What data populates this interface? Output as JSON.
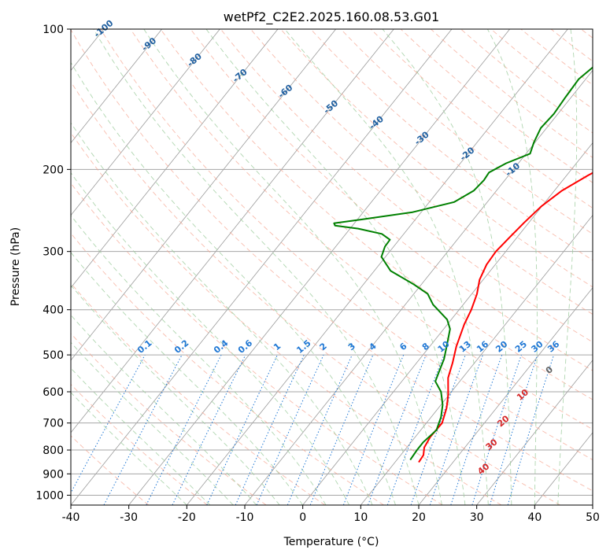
{
  "chart_data": {
    "type": "line",
    "title": "wetPf2_C2E2.2025.160.08.53.G01",
    "xlabel": "Temperature (°C)",
    "ylabel": "Pressure (hPa)",
    "xlim": [
      -40,
      50
    ],
    "ylim": [
      1050,
      100
    ],
    "y_scale": "log",
    "x_ticks": [
      -40,
      -30,
      -20,
      -10,
      0,
      10,
      20,
      30,
      40,
      50
    ],
    "y_ticks": [
      100,
      200,
      300,
      400,
      500,
      600,
      700,
      800,
      900,
      1000
    ],
    "grid": true,
    "series": [
      {
        "role": "temperature",
        "color": "#ff0000",
        "points": [
          [
            14.1,
            850
          ],
          [
            13.9,
            820
          ],
          [
            13.0,
            790
          ],
          [
            12.6,
            750
          ],
          [
            12.7,
            700
          ],
          [
            11.4,
            650
          ],
          [
            9.9,
            610
          ],
          [
            7.5,
            560
          ],
          [
            6.2,
            520
          ],
          [
            4.6,
            480
          ],
          [
            2.9,
            430
          ],
          [
            2.1,
            400
          ],
          [
            0.9,
            370
          ],
          [
            -0.6,
            345
          ],
          [
            -1.5,
            320
          ],
          [
            -1.7,
            300
          ],
          [
            -1.3,
            280
          ],
          [
            -0.8,
            260
          ],
          [
            -0.1,
            240
          ],
          [
            1.3,
            222
          ],
          [
            3.7,
            206
          ],
          [
            5.7,
            195
          ],
          [
            6.9,
            185
          ],
          [
            8.3,
            172
          ],
          [
            10.4,
            160
          ],
          [
            13.6,
            148
          ],
          [
            16.3,
            139
          ],
          [
            18.6,
            131
          ],
          [
            19.9,
            124
          ],
          [
            20.9,
            117
          ],
          [
            21.3,
            110
          ],
          [
            21.5,
            104
          ],
          [
            21.9,
            100
          ]
        ]
      },
      {
        "role": "dewpoint",
        "color": "#008000",
        "points": [
          [
            12.3,
            840
          ],
          [
            12.1,
            800
          ],
          [
            12.1,
            770
          ],
          [
            12.7,
            725
          ],
          [
            11.7,
            680
          ],
          [
            10.3,
            640
          ],
          [
            8.2,
            600
          ],
          [
            5.8,
            570
          ],
          [
            5.0,
            540
          ],
          [
            4.2,
            510
          ],
          [
            2.5,
            470
          ],
          [
            1.1,
            440
          ],
          [
            -0.7,
            420
          ],
          [
            -5.2,
            390
          ],
          [
            -7.6,
            370
          ],
          [
            -11.3,
            353
          ],
          [
            -17.2,
            330
          ],
          [
            -20.7,
            308
          ],
          [
            -21.5,
            293
          ],
          [
            -21.6,
            283
          ],
          [
            -23.8,
            275
          ],
          [
            -28.6,
            268
          ],
          [
            -33.0,
            264
          ],
          [
            -33.5,
            261
          ],
          [
            -29.2,
            256
          ],
          [
            -21.5,
            247
          ],
          [
            -15.7,
            235
          ],
          [
            -13.9,
            222
          ],
          [
            -13.6,
            211
          ],
          [
            -13.8,
            203
          ],
          [
            -12.1,
            194
          ],
          [
            -9.3,
            185
          ],
          [
            -10.2,
            175
          ],
          [
            -11.0,
            163
          ],
          [
            -10.7,
            152
          ],
          [
            -11.0,
            140
          ],
          [
            -11.2,
            128
          ],
          [
            -10.1,
            118
          ],
          [
            -7.8,
            109
          ],
          [
            -4.8,
            100
          ]
        ]
      }
    ],
    "dry_adiabat_labels": [
      "-100",
      "-90",
      "-80",
      "-70",
      "-60",
      "-50",
      "-40",
      "-30",
      "-20",
      "-10"
    ],
    "moist_adiabat_labels": [
      "0",
      "10",
      "20",
      "30",
      "40"
    ],
    "mixing_ratio_labels": [
      "0.1",
      "0.2",
      "0.4",
      "0.6",
      "1",
      "1.5",
      "2",
      "3",
      "4",
      "6",
      "8",
      "10",
      "13",
      "16",
      "20",
      "25",
      "30",
      "36"
    ],
    "colors": {
      "isotherm": "#9a9a9a",
      "isobar": "#a6a6a6",
      "dry_adiabat": "#f5a08a",
      "moist_adiabat": "#9ccc9c",
      "mixing_ratio": "#1f77d4",
      "dry_label": "#1f5fa0",
      "moist_label": "#d62728"
    }
  }
}
